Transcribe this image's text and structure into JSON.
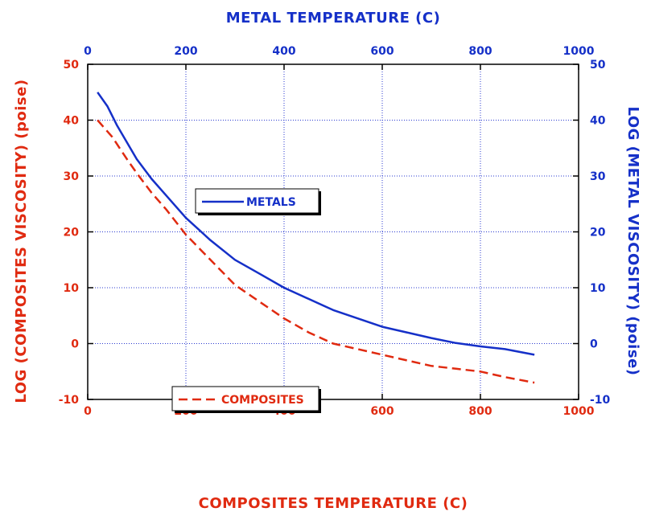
{
  "chart_data": {
    "type": "line",
    "title": "",
    "bottom_axis": {
      "label": "COMPOSITES  TEMPERATURE  (C)",
      "ticks": [
        "0",
        "200",
        "400",
        "600",
        "800",
        "1000"
      ],
      "range": [
        0,
        1000
      ]
    },
    "top_axis": {
      "label": "METAL  TEMPERATURE  (C)",
      "ticks": [
        "0",
        "200",
        "400",
        "600",
        "800",
        "1000"
      ],
      "range": [
        0,
        1000
      ]
    },
    "left_axis": {
      "label": "LOG (COMPOSITES VISCOSITY)  (poise)",
      "ticks": [
        "-10",
        "0",
        "10",
        "20",
        "30",
        "40",
        "50"
      ],
      "range": [
        -10,
        50
      ]
    },
    "right_axis": {
      "label": "LOG (METAL VISCOSITY)  (poise)",
      "ticks": [
        "-10",
        "0",
        "10",
        "20",
        "30",
        "40",
        "50"
      ],
      "range": [
        -10,
        50
      ]
    },
    "grid": true,
    "series": [
      {
        "name": "METALS",
        "color": "#1530c8",
        "dash": "solid",
        "axes": "top-right",
        "x": [
          20,
          40,
          60,
          80,
          100,
          130,
          160,
          200,
          250,
          300,
          350,
          400,
          450,
          500,
          550,
          600,
          650,
          700,
          750,
          800,
          850,
          910
        ],
        "y": [
          45,
          42.5,
          39,
          36,
          33,
          29.5,
          26.5,
          22.5,
          18.5,
          15,
          12.5,
          10,
          8,
          6,
          4.5,
          3,
          2,
          1,
          0.1,
          -0.5,
          -1,
          -2
        ]
      },
      {
        "name": "COMPOSITES",
        "color": "#e02a10",
        "dash": "dashed",
        "axes": "bottom-left",
        "x": [
          20,
          50,
          80,
          100,
          130,
          160,
          200,
          250,
          300,
          350,
          400,
          450,
          500,
          550,
          600,
          650,
          700,
          750,
          800,
          850,
          910
        ],
        "y": [
          40,
          37,
          33,
          30.5,
          27,
          24,
          19.5,
          15,
          10.5,
          7.5,
          4.5,
          2,
          0,
          -1,
          -2,
          -3,
          -4,
          -4.5,
          -5,
          -6,
          -7
        ]
      }
    ]
  }
}
